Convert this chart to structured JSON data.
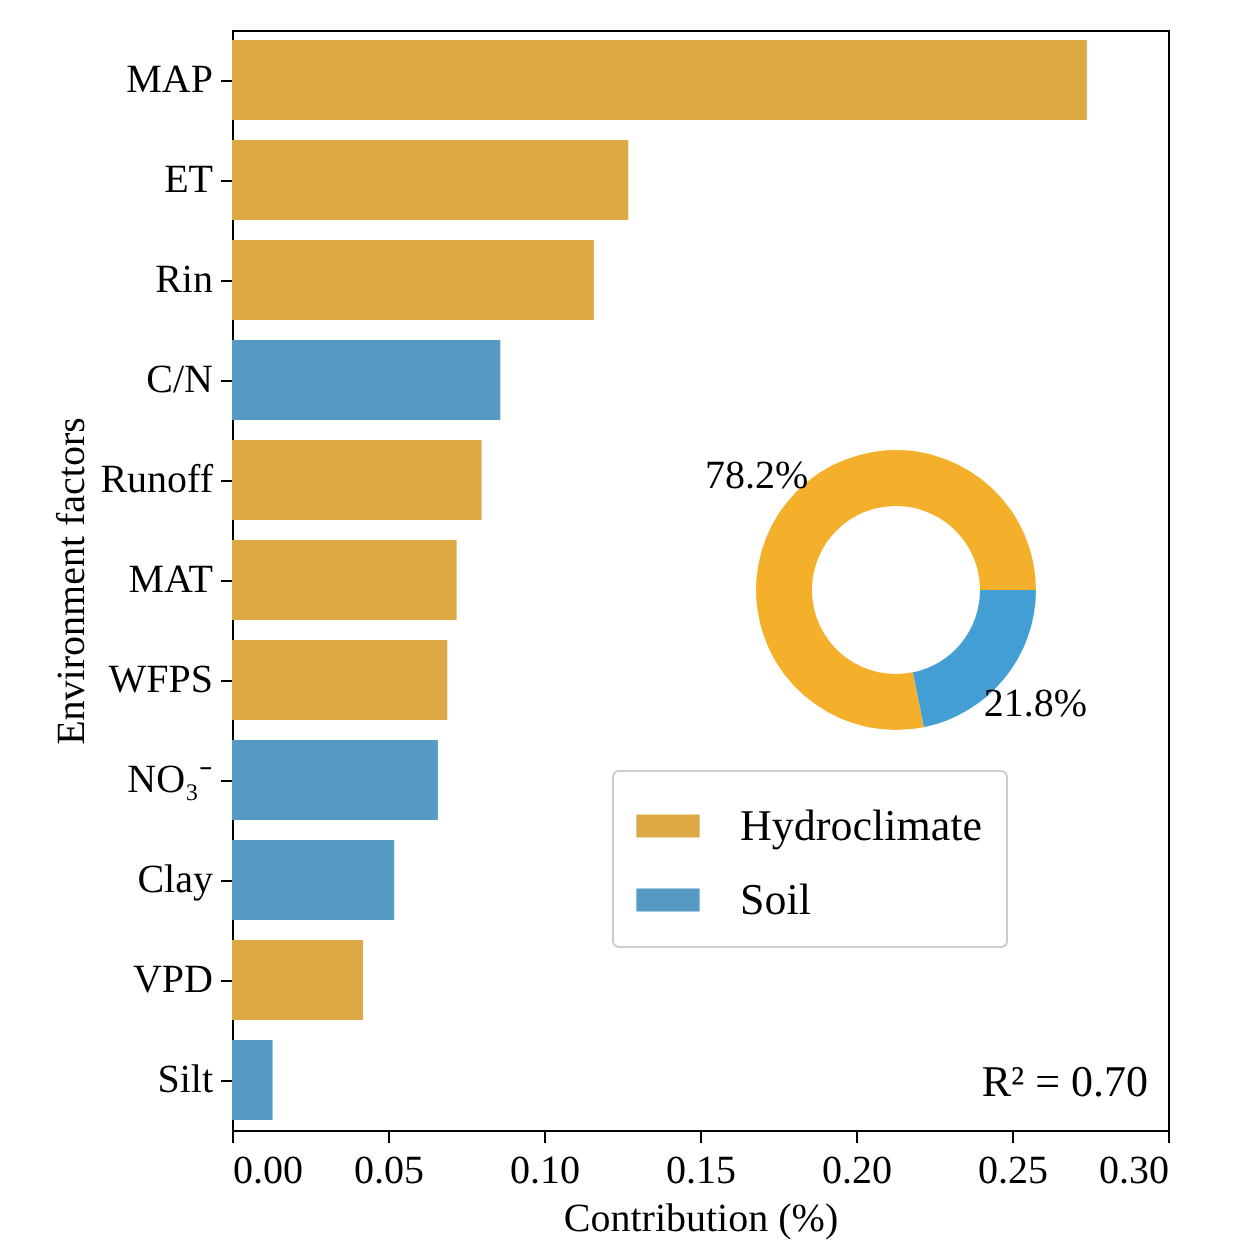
{
  "chart_data": [
    {
      "type": "bar",
      "orientation": "horizontal",
      "xlabel": "Contribution (%)",
      "ylabel": "Environment factors",
      "categories": [
        "MAP",
        "ET",
        "Rin",
        "C/N",
        "Runoff",
        "MAT",
        "WFPS",
        "NO₃⁻",
        "Clay",
        "VPD",
        "Silt"
      ],
      "series": [
        {
          "name": "Hydroclimate",
          "color": "#dca944",
          "values": [
            0.274,
            0.127,
            0.116,
            null,
            0.08,
            0.072,
            0.069,
            null,
            null,
            0.042,
            null
          ]
        },
        {
          "name": "Soil",
          "color": "#569ac4",
          "values": [
            null,
            null,
            null,
            0.086,
            null,
            null,
            null,
            0.066,
            0.052,
            null,
            0.013
          ]
        }
      ],
      "xlim": [
        0,
        0.3
      ],
      "xticks": [
        {
          "value": 0,
          "label": "0.00"
        },
        {
          "value": 0.05,
          "label": "0.05"
        },
        {
          "value": 0.1,
          "label": "0.10"
        },
        {
          "value": 0.15,
          "label": "0.15"
        },
        {
          "value": 0.2,
          "label": "0.20"
        },
        {
          "value": 0.25,
          "label": "0.25"
        },
        {
          "value": 0.3,
          "label": "0.30"
        }
      ],
      "legend": "right",
      "annotations": [
        "R² = 0.70"
      ]
    },
    {
      "type": "donut",
      "categories": [
        null,
        null
      ],
      "values": [
        78.2,
        21.8
      ],
      "colors": [
        "#f4b02b",
        "#439fd3"
      ],
      "value_labels": [
        "78.2%",
        "21.8%"
      ]
    }
  ]
}
